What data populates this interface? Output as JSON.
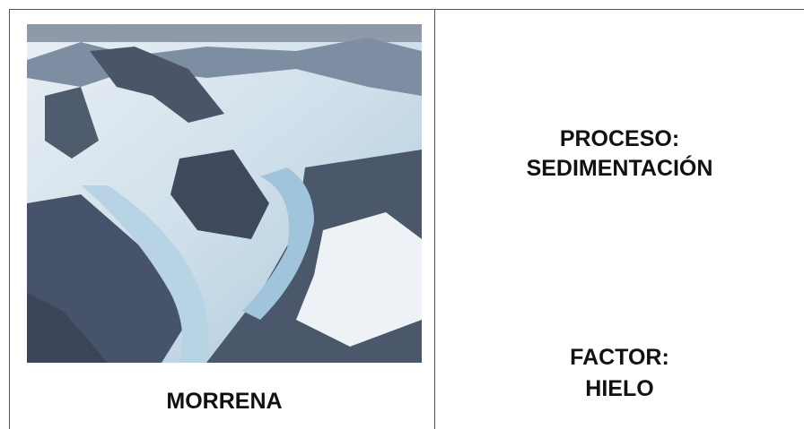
{
  "card": {
    "caption": "MORRENA",
    "process": {
      "label": "PROCESO:",
      "value": "SEDIMENTACIÓN"
    },
    "factor": {
      "label": "FACTOR:",
      "value": "HIELO"
    }
  }
}
